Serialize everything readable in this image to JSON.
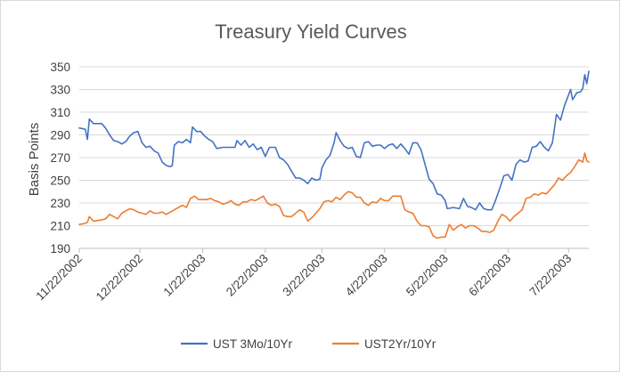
{
  "chart_data": {
    "type": "line",
    "title": "Treasury Yield Curves",
    "xlabel": "",
    "ylabel": "Basis Points",
    "ylim": [
      190,
      350
    ],
    "yticks": [
      190,
      210,
      230,
      250,
      270,
      290,
      310,
      330,
      350
    ],
    "xlim": [
      "2002-11-22",
      "2003-08-01"
    ],
    "xticks": [
      "2002-11-22",
      "2002-12-22",
      "2003-01-22",
      "2003-02-22",
      "2003-03-22",
      "2003-04-22",
      "2003-05-22",
      "2003-06-22",
      "2003-07-22"
    ],
    "xtick_labels": [
      "11/22/2002",
      "12/22/2002",
      "1/22/2003",
      "2/22/2003",
      "3/22/2003",
      "4/22/2003",
      "5/22/2003",
      "6/22/2003",
      "7/22/2003"
    ],
    "grid": true,
    "legend_position": "bottom",
    "series": [
      {
        "name": "UST 3Mo/10Yr",
        "color": "#4472C4",
        "points": [
          [
            "2002-11-22",
            296
          ],
          [
            "2002-11-25",
            295
          ],
          [
            "2002-11-26",
            286
          ],
          [
            "2002-11-27",
            304
          ],
          [
            "2002-11-29",
            300
          ],
          [
            "2002-12-03",
            300
          ],
          [
            "2002-12-05",
            296
          ],
          [
            "2002-12-07",
            290
          ],
          [
            "2002-12-09",
            285
          ],
          [
            "2002-12-11",
            284
          ],
          [
            "2002-12-13",
            282
          ],
          [
            "2002-12-15",
            284
          ],
          [
            "2002-12-17",
            289
          ],
          [
            "2002-12-19",
            292
          ],
          [
            "2002-12-21",
            293
          ],
          [
            "2002-12-23",
            283
          ],
          [
            "2002-12-25",
            279
          ],
          [
            "2002-12-27",
            280
          ],
          [
            "2002-12-29",
            276
          ],
          [
            "2002-12-31",
            274
          ],
          [
            "2003-01-02",
            266
          ],
          [
            "2003-01-04",
            263
          ],
          [
            "2003-01-06",
            262
          ],
          [
            "2003-01-07",
            263
          ],
          [
            "2003-01-08",
            281
          ],
          [
            "2003-01-10",
            284
          ],
          [
            "2003-01-12",
            283
          ],
          [
            "2003-01-14",
            286
          ],
          [
            "2003-01-16",
            283
          ],
          [
            "2003-01-17",
            297
          ],
          [
            "2003-01-19",
            293
          ],
          [
            "2003-01-21",
            293
          ],
          [
            "2003-01-23",
            289
          ],
          [
            "2003-01-25",
            286
          ],
          [
            "2003-01-27",
            284
          ],
          [
            "2003-01-29",
            278
          ],
          [
            "2003-02-01",
            279
          ],
          [
            "2003-02-04",
            279
          ],
          [
            "2003-02-07",
            279
          ],
          [
            "2003-02-08",
            285
          ],
          [
            "2003-02-10",
            281
          ],
          [
            "2003-02-12",
            285
          ],
          [
            "2003-02-14",
            279
          ],
          [
            "2003-02-16",
            282
          ],
          [
            "2003-02-18",
            277
          ],
          [
            "2003-02-20",
            279
          ],
          [
            "2003-02-22",
            271
          ],
          [
            "2003-02-24",
            279
          ],
          [
            "2003-02-27",
            279
          ],
          [
            "2003-03-01",
            270
          ],
          [
            "2003-03-03",
            268
          ],
          [
            "2003-03-05",
            264
          ],
          [
            "2003-03-07",
            258
          ],
          [
            "2003-03-09",
            252
          ],
          [
            "2003-03-11",
            252
          ],
          [
            "2003-03-13",
            250
          ],
          [
            "2003-03-15",
            247
          ],
          [
            "2003-03-17",
            252
          ],
          [
            "2003-03-19",
            250
          ],
          [
            "2003-03-21",
            251
          ],
          [
            "2003-03-22",
            261
          ],
          [
            "2003-03-24",
            268
          ],
          [
            "2003-03-26",
            272
          ],
          [
            "2003-03-28",
            283
          ],
          [
            "2003-03-29",
            292
          ],
          [
            "2003-03-31",
            285
          ],
          [
            "2003-04-02",
            280
          ],
          [
            "2003-04-04",
            278
          ],
          [
            "2003-04-06",
            279
          ],
          [
            "2003-04-08",
            271
          ],
          [
            "2003-04-10",
            270
          ],
          [
            "2003-04-12",
            283
          ],
          [
            "2003-04-14",
            284
          ],
          [
            "2003-04-16",
            280
          ],
          [
            "2003-04-18",
            281
          ],
          [
            "2003-04-20",
            281
          ],
          [
            "2003-04-22",
            278
          ],
          [
            "2003-04-24",
            281
          ],
          [
            "2003-04-26",
            282
          ],
          [
            "2003-04-28",
            278
          ],
          [
            "2003-04-30",
            282
          ],
          [
            "2003-05-02",
            278
          ],
          [
            "2003-05-04",
            273
          ],
          [
            "2003-05-06",
            283
          ],
          [
            "2003-05-08",
            283
          ],
          [
            "2003-05-10",
            277
          ],
          [
            "2003-05-12",
            264
          ],
          [
            "2003-05-14",
            251
          ],
          [
            "2003-05-16",
            247
          ],
          [
            "2003-05-18",
            238
          ],
          [
            "2003-05-20",
            237
          ],
          [
            "2003-05-22",
            232
          ],
          [
            "2003-05-23",
            225
          ],
          [
            "2003-05-26",
            226
          ],
          [
            "2003-05-29",
            225
          ],
          [
            "2003-05-31",
            234
          ],
          [
            "2003-06-02",
            227
          ],
          [
            "2003-06-04",
            226
          ],
          [
            "2003-06-06",
            224
          ],
          [
            "2003-06-08",
            230
          ],
          [
            "2003-06-10",
            225
          ],
          [
            "2003-06-12",
            224
          ],
          [
            "2003-06-14",
            224
          ],
          [
            "2003-06-16",
            233
          ],
          [
            "2003-06-18",
            243
          ],
          [
            "2003-06-20",
            254
          ],
          [
            "2003-06-22",
            255
          ],
          [
            "2003-06-24",
            250
          ],
          [
            "2003-06-26",
            264
          ],
          [
            "2003-06-28",
            268
          ],
          [
            "2003-06-30",
            266
          ],
          [
            "2003-07-02",
            267
          ],
          [
            "2003-07-04",
            279
          ],
          [
            "2003-07-06",
            280
          ],
          [
            "2003-07-08",
            284
          ],
          [
            "2003-07-10",
            279
          ],
          [
            "2003-07-12",
            276
          ],
          [
            "2003-07-14",
            283
          ],
          [
            "2003-07-16",
            308
          ],
          [
            "2003-07-18",
            303
          ],
          [
            "2003-07-20",
            316
          ],
          [
            "2003-07-23",
            330
          ],
          [
            "2003-07-24",
            321
          ],
          [
            "2003-07-26",
            327
          ],
          [
            "2003-07-28",
            328
          ],
          [
            "2003-07-29",
            331
          ],
          [
            "2003-07-30",
            343
          ],
          [
            "2003-07-31",
            335
          ],
          [
            "2003-08-01",
            346
          ]
        ]
      },
      {
        "name": "UST2Yr/10Yr",
        "color": "#ED7D31",
        "points": [
          [
            "2002-11-22",
            211
          ],
          [
            "2002-11-25",
            212
          ],
          [
            "2002-11-26",
            213
          ],
          [
            "2002-11-27",
            218
          ],
          [
            "2002-11-29",
            214
          ],
          [
            "2002-12-03",
            215
          ],
          [
            "2002-12-05",
            216
          ],
          [
            "2002-12-07",
            220
          ],
          [
            "2002-12-09",
            218
          ],
          [
            "2002-12-11",
            216
          ],
          [
            "2002-12-13",
            221
          ],
          [
            "2002-12-15",
            223
          ],
          [
            "2002-12-17",
            225
          ],
          [
            "2002-12-19",
            224
          ],
          [
            "2002-12-21",
            222
          ],
          [
            "2002-12-23",
            221
          ],
          [
            "2002-12-25",
            220
          ],
          [
            "2002-12-27",
            223
          ],
          [
            "2002-12-29",
            221
          ],
          [
            "2002-12-31",
            221
          ],
          [
            "2003-01-02",
            222
          ],
          [
            "2003-01-04",
            220
          ],
          [
            "2003-01-06",
            222
          ],
          [
            "2003-01-08",
            224
          ],
          [
            "2003-01-10",
            226
          ],
          [
            "2003-01-12",
            228
          ],
          [
            "2003-01-14",
            226
          ],
          [
            "2003-01-16",
            234
          ],
          [
            "2003-01-18",
            236
          ],
          [
            "2003-01-20",
            233
          ],
          [
            "2003-01-22",
            233
          ],
          [
            "2003-01-24",
            233
          ],
          [
            "2003-01-26",
            234
          ],
          [
            "2003-01-28",
            232
          ],
          [
            "2003-01-30",
            231
          ],
          [
            "2003-02-01",
            229
          ],
          [
            "2003-02-03",
            230
          ],
          [
            "2003-02-05",
            232
          ],
          [
            "2003-02-07",
            229
          ],
          [
            "2003-02-09",
            228
          ],
          [
            "2003-02-11",
            231
          ],
          [
            "2003-02-13",
            231
          ],
          [
            "2003-02-15",
            233
          ],
          [
            "2003-02-17",
            232
          ],
          [
            "2003-02-19",
            234
          ],
          [
            "2003-02-21",
            236
          ],
          [
            "2003-02-23",
            230
          ],
          [
            "2003-02-25",
            228
          ],
          [
            "2003-02-27",
            229
          ],
          [
            "2003-03-01",
            227
          ],
          [
            "2003-03-03",
            219
          ],
          [
            "2003-03-05",
            218
          ],
          [
            "2003-03-07",
            218
          ],
          [
            "2003-03-09",
            221
          ],
          [
            "2003-03-11",
            224
          ],
          [
            "2003-03-13",
            222
          ],
          [
            "2003-03-15",
            214
          ],
          [
            "2003-03-17",
            217
          ],
          [
            "2003-03-19",
            221
          ],
          [
            "2003-03-21",
            225
          ],
          [
            "2003-03-23",
            231
          ],
          [
            "2003-03-25",
            232
          ],
          [
            "2003-03-27",
            231
          ],
          [
            "2003-03-29",
            235
          ],
          [
            "2003-03-31",
            233
          ],
          [
            "2003-04-02",
            237
          ],
          [
            "2003-04-04",
            240
          ],
          [
            "2003-04-06",
            239
          ],
          [
            "2003-04-08",
            235
          ],
          [
            "2003-04-10",
            235
          ],
          [
            "2003-04-12",
            230
          ],
          [
            "2003-04-14",
            228
          ],
          [
            "2003-04-16",
            231
          ],
          [
            "2003-04-18",
            230
          ],
          [
            "2003-04-20",
            234
          ],
          [
            "2003-04-22",
            232
          ],
          [
            "2003-04-24",
            232
          ],
          [
            "2003-04-26",
            236
          ],
          [
            "2003-04-28",
            236
          ],
          [
            "2003-04-30",
            236
          ],
          [
            "2003-05-02",
            224
          ],
          [
            "2003-05-04",
            222
          ],
          [
            "2003-05-06",
            221
          ],
          [
            "2003-05-08",
            214
          ],
          [
            "2003-05-10",
            210
          ],
          [
            "2003-05-12",
            210
          ],
          [
            "2003-05-14",
            209
          ],
          [
            "2003-05-16",
            201
          ],
          [
            "2003-05-18",
            199
          ],
          [
            "2003-05-20",
            200
          ],
          [
            "2003-05-22",
            200
          ],
          [
            "2003-05-24",
            211
          ],
          [
            "2003-05-26",
            206
          ],
          [
            "2003-05-28",
            209
          ],
          [
            "2003-05-30",
            211
          ],
          [
            "2003-06-01",
            208
          ],
          [
            "2003-06-03",
            210
          ],
          [
            "2003-06-05",
            210
          ],
          [
            "2003-06-07",
            208
          ],
          [
            "2003-06-09",
            205
          ],
          [
            "2003-06-11",
            205
          ],
          [
            "2003-06-13",
            204
          ],
          [
            "2003-06-15",
            206
          ],
          [
            "2003-06-17",
            214
          ],
          [
            "2003-06-19",
            220
          ],
          [
            "2003-06-21",
            218
          ],
          [
            "2003-06-23",
            214
          ],
          [
            "2003-06-25",
            218
          ],
          [
            "2003-06-27",
            221
          ],
          [
            "2003-06-29",
            224
          ],
          [
            "2003-07-01",
            234
          ],
          [
            "2003-07-03",
            235
          ],
          [
            "2003-07-05",
            238
          ],
          [
            "2003-07-07",
            237
          ],
          [
            "2003-07-09",
            239
          ],
          [
            "2003-07-11",
            238
          ],
          [
            "2003-07-13",
            242
          ],
          [
            "2003-07-15",
            246
          ],
          [
            "2003-07-17",
            252
          ],
          [
            "2003-07-19",
            250
          ],
          [
            "2003-07-21",
            254
          ],
          [
            "2003-07-23",
            257
          ],
          [
            "2003-07-25",
            262
          ],
          [
            "2003-07-27",
            268
          ],
          [
            "2003-07-29",
            266
          ],
          [
            "2003-07-30",
            274
          ],
          [
            "2003-07-31",
            267
          ],
          [
            "2003-08-01",
            266
          ]
        ]
      }
    ]
  }
}
